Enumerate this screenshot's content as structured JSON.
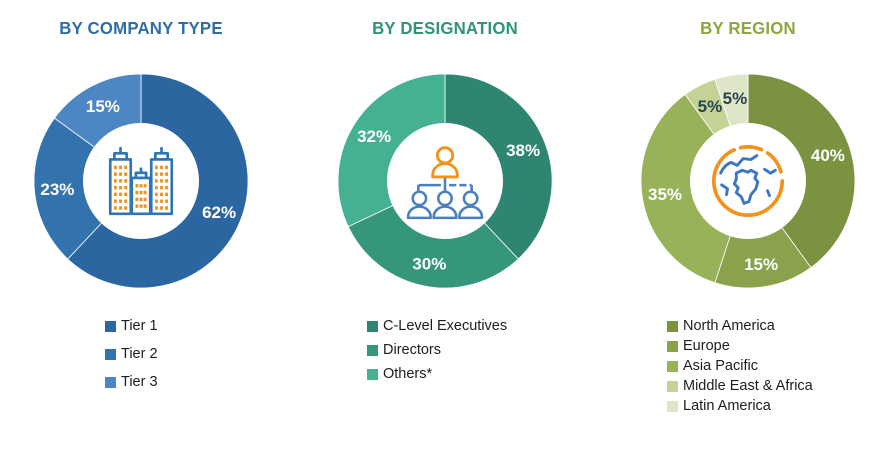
{
  "page": {
    "background": "#FFFFFF"
  },
  "chart_data": [
    {
      "type": "pie",
      "subtype": "donut",
      "title": "BY COMPANY TYPE",
      "title_color": "#2E6DA8",
      "center_icon": "buildings-icon",
      "legend_position": "bottom",
      "start_angle_deg": 0,
      "segments": [
        {
          "label": "Tier 1",
          "value": 62,
          "display": "62%",
          "color": "#2B66A0",
          "value_label_color": "#FFFFFF"
        },
        {
          "label": "Tier 2",
          "value": 23,
          "display": "23%",
          "color": "#3273AE",
          "value_label_color": "#FFFFFF"
        },
        {
          "label": "Tier 3",
          "value": 15,
          "display": "15%",
          "color": "#4D87C3",
          "value_label_color": "#FFFFFF"
        }
      ]
    },
    {
      "type": "pie",
      "subtype": "donut",
      "title": "BY DESIGNATION",
      "title_color": "#2F9479",
      "center_icon": "org-chart-icon",
      "legend_position": "bottom",
      "start_angle_deg": 0,
      "segments": [
        {
          "label": "C-Level Executives",
          "value": 38,
          "display": "38%",
          "color": "#2E8571",
          "value_label_color": "#FFFFFF"
        },
        {
          "label": "Directors",
          "value": 30,
          "display": "30%",
          "color": "#35967B",
          "value_label_color": "#FFFFFF"
        },
        {
          "label": "Others*",
          "value": 32,
          "display": "32%",
          "color": "#45B193",
          "value_label_color": "#FFFFFF"
        }
      ]
    },
    {
      "type": "pie",
      "subtype": "donut",
      "title": "BY REGION",
      "title_color": "#8CA640",
      "center_icon": "globe-icon",
      "legend_position": "bottom",
      "start_angle_deg": 0,
      "segments": [
        {
          "label": "North America",
          "value": 40,
          "display": "40%",
          "color": "#7B9340",
          "value_label_color": "#FFFFFF"
        },
        {
          "label": "Europe",
          "value": 15,
          "display": "15%",
          "color": "#89A24B",
          "value_label_color": "#FFFFFF"
        },
        {
          "label": "Asia Pacific",
          "value": 35,
          "display": "35%",
          "color": "#98B259",
          "value_label_color": "#FFFFFF"
        },
        {
          "label": "Middle East & Africa",
          "value": 5,
          "display": "5%",
          "color": "#C5D295",
          "value_label_color": "#26474E"
        },
        {
          "label": "Latin America",
          "value": 5,
          "display": "5%",
          "color": "#DEE5C9",
          "value_label_color": "#26474E"
        }
      ]
    }
  ]
}
